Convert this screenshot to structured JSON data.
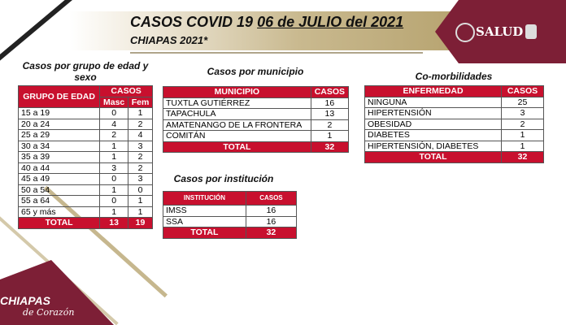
{
  "header": {
    "title_prefix": "CASOS COVID 19",
    "title_date": "06 de JULIO del 2021",
    "subtitle": "CHIAPAS 2021*",
    "logo": "SALUD",
    "footer_logo": "CHIAPAS",
    "footer_logo_sub": "de Corazón"
  },
  "age": {
    "title": "Casos por grupo de edad y sexo",
    "h_group": "GRUPO DE EDAD",
    "h_cases": "CASOS",
    "h_m": "Masc",
    "h_f": "Fem",
    "rows": [
      [
        "15 a 19",
        "0",
        "1"
      ],
      [
        "20 a 24",
        "4",
        "2"
      ],
      [
        "25 a 29",
        "2",
        "4"
      ],
      [
        "30 a 34",
        "1",
        "3"
      ],
      [
        "35 a 39",
        "1",
        "2"
      ],
      [
        "40 a 44",
        "3",
        "2"
      ],
      [
        "45 a 49",
        "0",
        "3"
      ],
      [
        "50 a 54",
        "1",
        "0"
      ],
      [
        "55 a 64",
        "0",
        "1"
      ],
      [
        "65 y más",
        "1",
        "1"
      ]
    ],
    "total": [
      "TOTAL",
      "13",
      "19"
    ]
  },
  "mun": {
    "title": "Casos por municipio",
    "h1": "MUNICIPIO",
    "h2": "CASOS",
    "rows": [
      [
        "TUXTLA GUTIÉRREZ",
        "16"
      ],
      [
        "TAPACHULA",
        "13"
      ],
      [
        "AMATENANGO DE LA FRONTERA",
        "2"
      ],
      [
        "COMITÁN",
        "1"
      ]
    ],
    "total": [
      "TOTAL",
      "32"
    ]
  },
  "com": {
    "title": "Co-morbilidades",
    "h1": "ENFERMEDAD",
    "h2": "CASOS",
    "rows": [
      [
        "NINGUNA",
        "25"
      ],
      [
        "HIPERTENSIÓN",
        "3"
      ],
      [
        "OBESIDAD",
        "2"
      ],
      [
        "DIABETES",
        "1"
      ],
      [
        "HIPERTENSIÓN, DIABETES",
        "1"
      ]
    ],
    "total": [
      "TOTAL",
      "32"
    ]
  },
  "inst": {
    "title": "Casos por institución",
    "h1": "INSTITUCIÓN",
    "h2": "CASOS",
    "rows": [
      [
        "IMSS",
        "16"
      ],
      [
        "SSA",
        "16"
      ]
    ],
    "total": [
      "TOTAL",
      "32"
    ]
  },
  "colors": {
    "red": "#c8102e",
    "maroon": "#7d1f36",
    "gold": "#b8a572"
  }
}
